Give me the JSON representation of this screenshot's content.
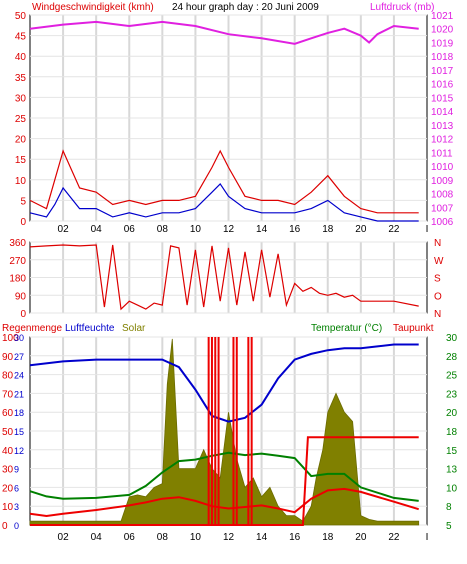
{
  "chart_data": [
    {
      "type": "line",
      "title": "24 hour graph day : 20 Juni 2009",
      "ylabel": "Windgeschwindigkeit (kmh)",
      "y2label": "Luftdruck (mb)",
      "ylim": [
        0,
        50
      ],
      "y2lim": [
        1006,
        1021
      ],
      "yticks": [
        "0",
        "5",
        "10",
        "15",
        "20",
        "25",
        "30",
        "35",
        "40",
        "45",
        "50"
      ],
      "y2ticks": [
        "1006",
        "1007",
        "1008",
        "1009",
        "1010",
        "1011",
        "1012",
        "1013",
        "1014",
        "1015",
        "1016",
        "1017",
        "1018",
        "1019",
        "1020",
        "1021"
      ],
      "xlim": [
        0,
        24
      ],
      "xticks": [
        "02",
        "04",
        "06",
        "08",
        "10",
        "12",
        "14",
        "16",
        "18",
        "20",
        "22",
        "I"
      ],
      "grid": true,
      "colors": {
        "gust": "#dd0000",
        "wind": "#0000cc",
        "pressure": "#e020e0"
      },
      "series": [
        {
          "key": "gust",
          "color": "#dd0000",
          "x": [
            0,
            1,
            1.5,
            2,
            3,
            4,
            5,
            6,
            7,
            8,
            9,
            10,
            11,
            11.5,
            12,
            13,
            14,
            15,
            16,
            17,
            18,
            19,
            20,
            21,
            22,
            23.5
          ],
          "values": [
            5,
            3,
            10,
            17,
            8,
            7,
            4,
            5,
            4,
            5,
            5,
            6,
            13,
            17,
            13,
            6,
            5,
            5,
            4,
            7,
            11,
            6,
            3,
            2,
            2,
            2
          ]
        },
        {
          "key": "wind",
          "color": "#0000cc",
          "x": [
            0,
            1,
            1.5,
            2,
            3,
            4,
            5,
            6,
            7,
            8,
            9,
            10,
            11,
            11.5,
            12,
            13,
            14,
            15,
            16,
            17,
            18,
            19,
            20,
            21,
            22,
            23.5
          ],
          "values": [
            2,
            1,
            4,
            8,
            3,
            3,
            1,
            2,
            1,
            2,
            2,
            3,
            7,
            9,
            6,
            3,
            2,
            2,
            2,
            3,
            5,
            2,
            1,
            0,
            0,
            0
          ],
          "axis": "left"
        },
        {
          "key": "pressure",
          "color": "#e020e0",
          "x": [
            0,
            2,
            4,
            6,
            8,
            10,
            12,
            14,
            16,
            17,
            18,
            19,
            20,
            20.5,
            21,
            22,
            23.5
          ],
          "values": [
            1020.0,
            1020.3,
            1020.5,
            1020.2,
            1020.5,
            1020.2,
            1019.6,
            1019.3,
            1018.9,
            1019.3,
            1019.7,
            1020.0,
            1019.5,
            1019.0,
            1019.6,
            1020.2,
            1020.0
          ],
          "axis": "right"
        }
      ]
    },
    {
      "type": "line",
      "ylim": [
        0,
        360
      ],
      "yticks": [
        "0",
        "90",
        "180",
        "270",
        "360"
      ],
      "y2ticks": [
        "N",
        "W",
        "S",
        "O",
        "N"
      ],
      "xlim": [
        0,
        24
      ],
      "colors": {
        "direction": "#dd0000"
      },
      "series": [
        {
          "key": "direction",
          "color": "#dd0000",
          "x": [
            0,
            1,
            2,
            3,
            4,
            4.5,
            5,
            5.5,
            6,
            6.5,
            7,
            7.5,
            8,
            8.5,
            9,
            9.5,
            10,
            10.5,
            11,
            11.5,
            12,
            12.5,
            13,
            13.5,
            14,
            14.5,
            15,
            15.5,
            16,
            16.5,
            17,
            17.5,
            18,
            18.5,
            19,
            19.5,
            20,
            21,
            22,
            23.5
          ],
          "values": [
            335,
            340,
            345,
            340,
            345,
            30,
            345,
            20,
            60,
            40,
            20,
            50,
            40,
            340,
            330,
            40,
            320,
            30,
            340,
            60,
            330,
            40,
            310,
            60,
            320,
            80,
            300,
            40,
            150,
            110,
            130,
            100,
            90,
            100,
            80,
            90,
            60,
            60,
            60,
            35
          ]
        }
      ]
    },
    {
      "type": "line",
      "legend": [
        "Regenmenge",
        "Luftfeuchte",
        "Solar",
        "Temperatur (°C)",
        "Taupunkt"
      ],
      "yticks_rain": [
        "0",
        "3",
        "6",
        "9",
        "12",
        "15",
        "18",
        "21",
        "24",
        "27",
        "30"
      ],
      "yticks_humidity": [
        "0",
        "10",
        "20",
        "30",
        "40",
        "50",
        "60",
        "70",
        "80",
        "90",
        "100"
      ],
      "yticks_temp": [
        "5",
        "8",
        "10",
        "13",
        "15",
        "18",
        "20",
        "23",
        "25",
        "28",
        "30"
      ],
      "ylim": [
        0,
        100
      ],
      "xlim": [
        0,
        24
      ],
      "colors": {
        "humidity": "#0000cc",
        "temperature": "#008000",
        "dewpoint": "#ee0000",
        "solar": "#808000",
        "rain": "#ee0000"
      },
      "series": [
        {
          "key": "humidity",
          "color": "#0000cc",
          "x": [
            0,
            2,
            4,
            6,
            7,
            8,
            9,
            10,
            11,
            12,
            13,
            14,
            15,
            16,
            17,
            18,
            19,
            20,
            21,
            22,
            23.5
          ],
          "values": [
            85,
            87,
            88,
            88,
            88,
            88,
            84,
            72,
            58,
            55,
            57,
            64,
            78,
            88,
            91,
            93,
            94,
            94,
            95,
            96,
            96
          ]
        },
        {
          "key": "temperature",
          "color": "#008000",
          "x": [
            0,
            1,
            2,
            4,
            6,
            7,
            8,
            9,
            10,
            11,
            12,
            13,
            14,
            15,
            16,
            17,
            18,
            19,
            20,
            22,
            23.5
          ],
          "values": [
            9.5,
            8.8,
            8.5,
            8.6,
            9,
            10.2,
            12,
            13.5,
            13.7,
            14.2,
            14.6,
            14.3,
            14.5,
            14.2,
            13.9,
            11.5,
            11.8,
            11.8,
            10,
            8.6,
            8.2
          ]
        },
        {
          "key": "dewpoint",
          "color": "#ee0000",
          "x": [
            0,
            1,
            2,
            4,
            6,
            7,
            8,
            9,
            10,
            11,
            12,
            13,
            14,
            15,
            16,
            17,
            18,
            19,
            20,
            22,
            23.5
          ],
          "values": [
            6.5,
            6.2,
            6.5,
            7,
            7.6,
            8,
            8.5,
            8.7,
            8.2,
            7.5,
            7.2,
            7.4,
            7.6,
            7.2,
            6.7,
            8.5,
            9.6,
            9.8,
            9.4,
            8.1,
            7.1
          ]
        },
        {
          "key": "solar",
          "color": "#808000",
          "x": [
            0,
            5.5,
            6,
            6.5,
            7,
            7.5,
            8,
            8.3,
            8.6,
            9,
            9.5,
            10,
            10.5,
            11,
            11.5,
            12,
            12.5,
            13,
            13.5,
            14,
            14.5,
            15,
            15.5,
            16,
            16.5,
            17,
            17.3,
            17.7,
            18,
            18.5,
            19,
            19.5,
            20,
            20.5,
            21,
            22,
            23.5
          ],
          "values": [
            2,
            2,
            15,
            16,
            15,
            20,
            22,
            75,
            99,
            30,
            30,
            30,
            40,
            30,
            25,
            60,
            35,
            20,
            25,
            15,
            20,
            10,
            5,
            5,
            2,
            10,
            25,
            40,
            60,
            70,
            60,
            55,
            5,
            3,
            2,
            2,
            2
          ]
        },
        {
          "key": "rain_spikes",
          "color": "#ee0000",
          "x": [
            10.8,
            11,
            11.2,
            11.4,
            12.3,
            12.5,
            13.2,
            13.4
          ],
          "values": [
            100,
            100,
            100,
            100,
            100,
            100,
            100,
            100
          ]
        },
        {
          "key": "rain_total",
          "color": "#ee0000",
          "x": [
            0,
            16.5,
            16.8,
            23.5
          ],
          "values": [
            0,
            0,
            14,
            14
          ]
        }
      ]
    }
  ]
}
